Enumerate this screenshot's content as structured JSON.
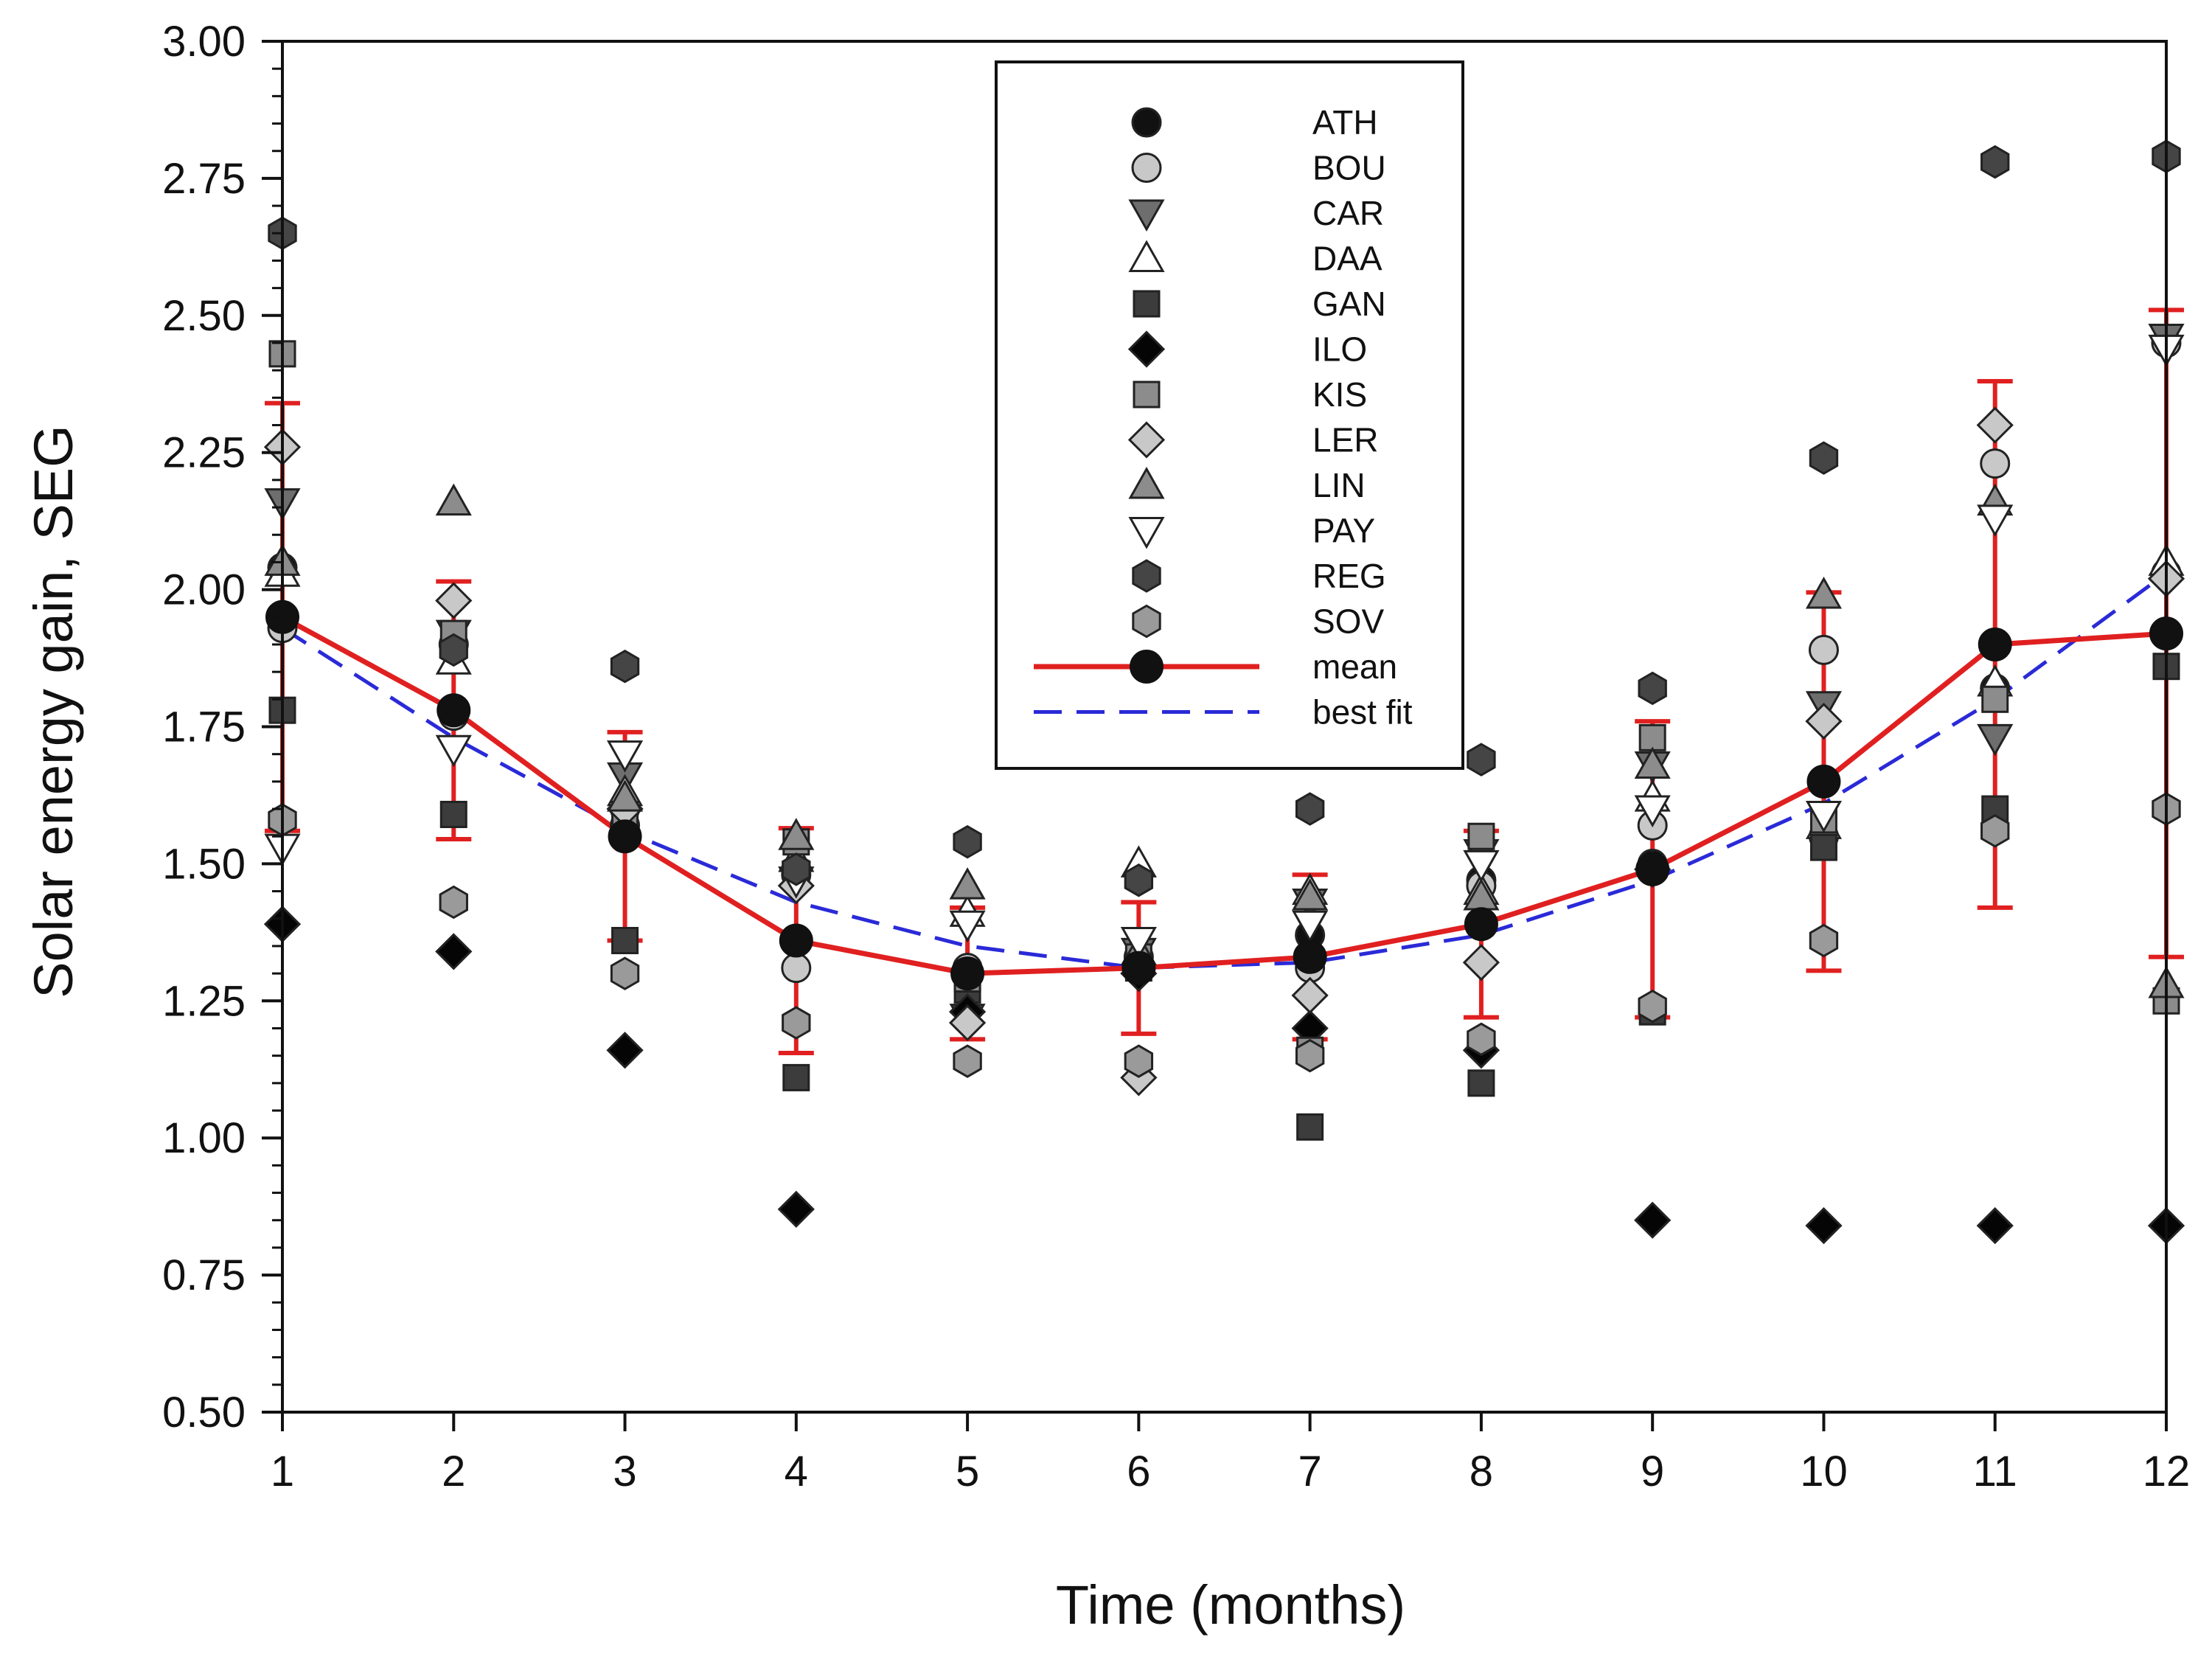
{
  "chart_data": {
    "type": "scatter",
    "title": "",
    "xlabel": "Time (months)",
    "ylabel": "Solar energy gain, SEG",
    "xlim": [
      1,
      12
    ],
    "ylim": [
      0.5,
      3.0
    ],
    "x": [
      1,
      2,
      3,
      4,
      5,
      6,
      7,
      8,
      9,
      10,
      11,
      12
    ],
    "x_tick_labels": [
      "1",
      "2",
      "3",
      "4",
      "5",
      "6",
      "7",
      "8",
      "9",
      "10",
      "11",
      "12"
    ],
    "y_ticks": [
      0.5,
      0.75,
      1.0,
      1.25,
      1.5,
      1.75,
      2.0,
      2.25,
      2.5,
      2.75,
      3.0
    ],
    "y_tick_labels": [
      "0.50",
      "0.75",
      "1.00",
      "1.25",
      "1.50",
      "1.75",
      "2.00",
      "2.25",
      "2.50",
      "2.75",
      "3.00"
    ],
    "grid": false,
    "legend_position": "top-center",
    "series": [
      {
        "name": "ATH",
        "marker": "circle",
        "color": "#111111",
        "values": [
          2.04,
          1.9,
          1.6,
          1.48,
          1.3,
          1.32,
          1.37,
          1.47,
          1.5,
          1.55,
          1.82,
          2.03
        ]
      },
      {
        "name": "BOU",
        "marker": "circle",
        "color": "#c8c8c8",
        "values": [
          1.93,
          1.77,
          1.57,
          1.31,
          1.31,
          1.33,
          1.31,
          1.46,
          1.57,
          1.89,
          2.23,
          2.45
        ]
      },
      {
        "name": "CAR",
        "marker": "triangle-down",
        "color": "#6e6e6e",
        "values": [
          2.16,
          1.92,
          1.66,
          1.47,
          1.22,
          1.34,
          1.43,
          1.52,
          1.68,
          1.79,
          1.73,
          2.46
        ]
      },
      {
        "name": "DAA",
        "marker": "triangle-up",
        "color": "#ffffff",
        "values": [
          2.03,
          1.87,
          1.63,
          1.51,
          1.41,
          1.5,
          1.45,
          1.45,
          1.62,
          1.57,
          1.83,
          2.05
        ]
      },
      {
        "name": "GAN",
        "marker": "square",
        "color": "#3c3c3c",
        "values": [
          1.78,
          1.59,
          1.36,
          1.11,
          1.27,
          1.31,
          1.02,
          1.1,
          1.23,
          1.53,
          1.6,
          1.86
        ]
      },
      {
        "name": "ILO",
        "marker": "diamond",
        "color": "#050505",
        "values": [
          1.39,
          1.34,
          1.16,
          0.87,
          1.23,
          1.3,
          1.2,
          1.16,
          0.85,
          0.84,
          0.84,
          0.84
        ]
      },
      {
        "name": "KIS",
        "marker": "square",
        "color": "#8c8c8c",
        "values": [
          2.43,
          1.92,
          1.59,
          1.54,
          1.29,
          1.33,
          1.16,
          1.55,
          1.73,
          1.58,
          1.8,
          1.25
        ]
      },
      {
        "name": "LER",
        "marker": "diamond",
        "color": "#c8c8c8",
        "values": [
          2.26,
          1.98,
          1.6,
          1.46,
          1.21,
          1.11,
          1.26,
          1.32,
          1.49,
          1.76,
          2.3,
          2.02
        ]
      },
      {
        "name": "LIN",
        "marker": "triangle-up",
        "color": "#8c8c8c",
        "values": [
          2.05,
          2.16,
          1.62,
          1.55,
          1.46,
          1.34,
          1.44,
          1.44,
          1.68,
          1.99,
          2.16,
          1.28
        ]
      },
      {
        "name": "PAY",
        "marker": "triangle-down",
        "color": "#ffffff",
        "values": [
          1.53,
          1.71,
          1.7,
          1.47,
          1.39,
          1.36,
          1.39,
          1.5,
          1.6,
          1.59,
          2.13,
          2.44
        ]
      },
      {
        "name": "REG",
        "marker": "hexagon",
        "color": "#454545",
        "values": [
          2.65,
          1.89,
          1.86,
          1.49,
          1.54,
          1.47,
          1.6,
          1.69,
          1.82,
          2.24,
          2.78,
          2.79
        ]
      },
      {
        "name": "SOV",
        "marker": "hexagon",
        "color": "#9a9a9a",
        "values": [
          1.58,
          1.43,
          1.3,
          1.21,
          1.14,
          1.14,
          1.15,
          1.18,
          1.24,
          1.36,
          1.56,
          1.6
        ]
      },
      {
        "name": "mean",
        "marker": "circle-line",
        "color": "#111111",
        "line_color": "#e02020",
        "values": [
          1.95,
          1.78,
          1.55,
          1.36,
          1.3,
          1.31,
          1.33,
          1.39,
          1.49,
          1.65,
          1.9,
          1.92
        ],
        "error": [
          0.39,
          0.235,
          0.19,
          0.205,
          0.12,
          0.12,
          0.15,
          0.17,
          0.27,
          0.345,
          0.48,
          0.59
        ]
      },
      {
        "name": "best fit",
        "marker": "dashed-line",
        "color": "#2a2ad8",
        "values": [
          1.93,
          1.73,
          1.56,
          1.43,
          1.35,
          1.31,
          1.32,
          1.37,
          1.47,
          1.61,
          1.8,
          2.03
        ]
      }
    ]
  }
}
